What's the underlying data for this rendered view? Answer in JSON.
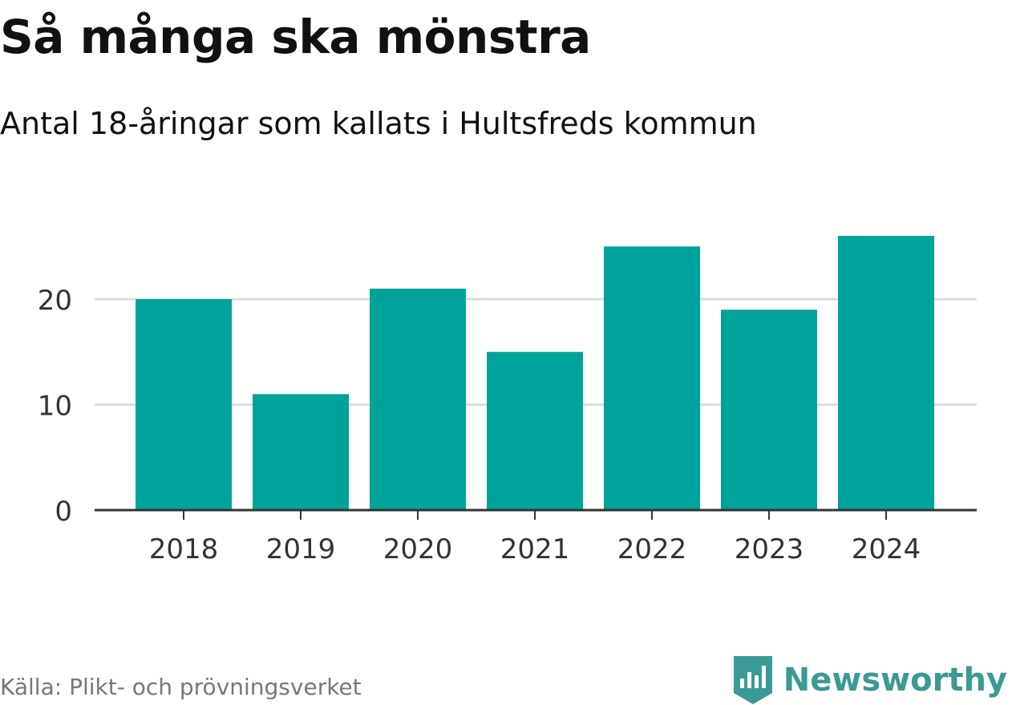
{
  "header": {
    "title": "Så många ska mönstra",
    "subtitle": "Antal 18-åringar som kallats i Hultsfreds kommun"
  },
  "footer": {
    "source": "Källa: Plikt- och prövningsverket",
    "brand": "Newsworthy",
    "brand_icon": "bar-chart-badge-icon"
  },
  "colors": {
    "bar": "#00a39a",
    "grid": "#dddddd",
    "axis": "#333333",
    "brand": "#3a9a95"
  },
  "chart_data": {
    "type": "bar",
    "title": "Så många ska mönstra",
    "subtitle": "Antal 18-åringar som kallats i Hultsfreds kommun",
    "xlabel": "",
    "ylabel": "",
    "categories": [
      "2018",
      "2019",
      "2020",
      "2021",
      "2022",
      "2023",
      "2024"
    ],
    "values": [
      20,
      11,
      21,
      15,
      25,
      19,
      26
    ],
    "ylim": [
      0,
      28
    ],
    "yticks": [
      0,
      10,
      20
    ],
    "grid": true,
    "legend": "none"
  }
}
